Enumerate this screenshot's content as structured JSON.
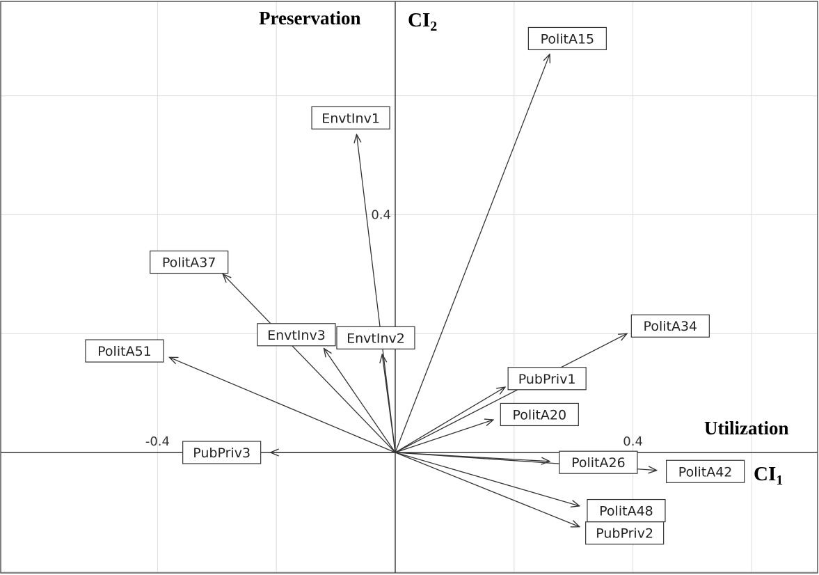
{
  "chart_data": {
    "type": "biplot-vectors",
    "x_axis": {
      "name": "CI",
      "subscript": "1",
      "pole_label": "Utilization",
      "range": [
        -0.66,
        0.71
      ],
      "tick_labels": [
        {
          "value": -0.4,
          "text": "-0.4"
        },
        {
          "value": 0.4,
          "text": "0.4"
        }
      ],
      "gridlines": [
        -0.4,
        -0.2,
        0,
        0.2,
        0.4,
        0.6
      ]
    },
    "y_axis": {
      "name": "CI",
      "subscript": "2",
      "pole_label": "Preservation",
      "range": [
        -0.205,
        0.76
      ],
      "tick_labels": [
        {
          "value": 0.4,
          "text": "0.4"
        }
      ],
      "gridlines": [
        -0.2,
        0,
        0.2,
        0.4,
        0.6
      ]
    },
    "grid": true,
    "vectors": [
      {
        "label": "PolitA15",
        "x": 0.26,
        "y": 0.67
      },
      {
        "label": "EnvtInv1",
        "x": -0.065,
        "y": 0.535
      },
      {
        "label": "PolitA37",
        "x": -0.29,
        "y": 0.3
      },
      {
        "label": "EnvtInv2",
        "x": -0.022,
        "y": 0.165
      },
      {
        "label": "EnvtInv3",
        "x": -0.12,
        "y": 0.175
      },
      {
        "label": "PolitA51",
        "x": -0.38,
        "y": 0.16
      },
      {
        "label": "PolitA34",
        "x": 0.39,
        "y": 0.2
      },
      {
        "label": "PubPriv1",
        "x": 0.185,
        "y": 0.11
      },
      {
        "label": "PolitA20",
        "x": 0.165,
        "y": 0.055
      },
      {
        "label": "PubPriv3",
        "x": -0.21,
        "y": 0.0
      },
      {
        "label": "PolitA26",
        "x": 0.26,
        "y": -0.015
      },
      {
        "label": "PolitA42",
        "x": 0.44,
        "y": -0.03
      },
      {
        "label": "PolitA48",
        "x": 0.31,
        "y": -0.09
      },
      {
        "label": "PubPriv2",
        "x": 0.31,
        "y": -0.125
      }
    ]
  }
}
